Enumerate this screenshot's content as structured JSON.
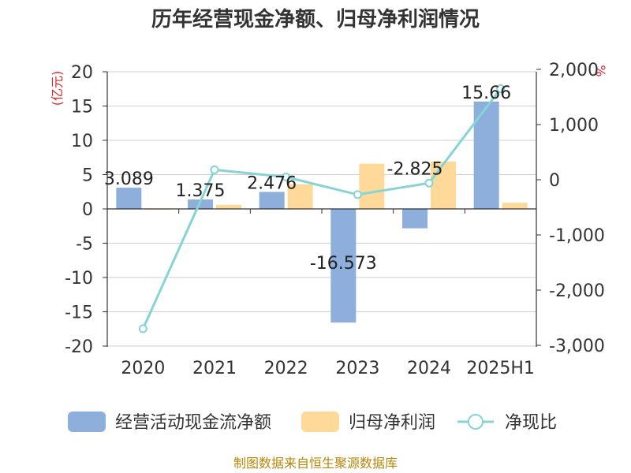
{
  "chart_data": {
    "type": "bar",
    "title": "历年经营现金净额、归母净利润情况",
    "categories": [
      "2020",
      "2021",
      "2022",
      "2023",
      "2024",
      "2025H1"
    ],
    "y_left": {
      "unit": "(亿元)",
      "ylim": [
        -20,
        20
      ],
      "ticks": [
        "20",
        "15",
        "10",
        "5",
        "0",
        "-5",
        "-10",
        "-15",
        "-20"
      ]
    },
    "y_right": {
      "unit": "%",
      "ylim": [
        -3000,
        2000
      ],
      "ticks": [
        "2,000",
        "1,000",
        "0",
        "-1,000",
        "-2,000",
        "-3,000"
      ]
    },
    "series": [
      {
        "name": "经营活动现金流净额",
        "type": "bar",
        "axis": "left",
        "color": "#8eaedb",
        "values": [
          3.089,
          1.375,
          2.476,
          -16.573,
          -2.825,
          15.66
        ],
        "labels": [
          "3.089",
          "1.375",
          "2.476",
          "-16.573",
          "-2.825",
          "15.66"
        ]
      },
      {
        "name": "归母净利润",
        "type": "bar",
        "axis": "left",
        "color": "#ffd99a",
        "values": [
          0.05,
          0.6,
          3.6,
          6.6,
          6.9,
          0.9
        ]
      },
      {
        "name": "净现比",
        "type": "line",
        "axis": "right",
        "color": "#86d4d6",
        "values": [
          -2700,
          180,
          50,
          -270,
          -60,
          1650
        ]
      }
    ],
    "grid": true,
    "legend": "bottom"
  },
  "source": "制图数据来自恒生聚源数据库"
}
